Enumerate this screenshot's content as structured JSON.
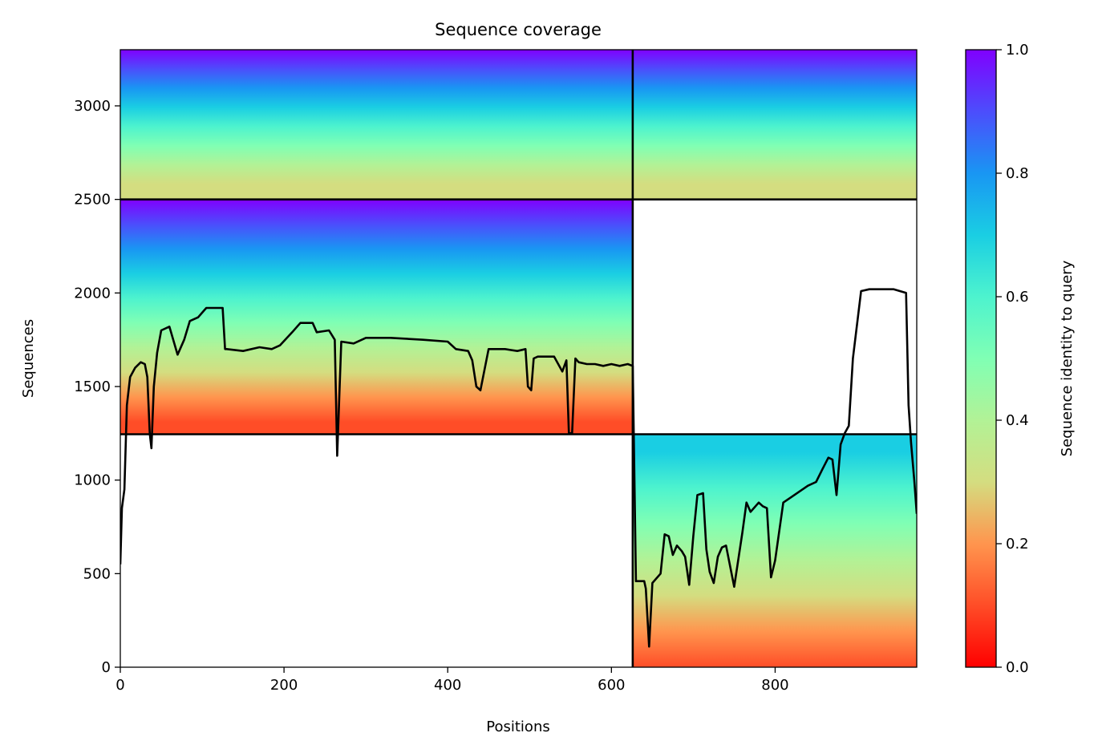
{
  "chart_data": {
    "type": "heatmap",
    "title": "Sequence coverage",
    "xlabel": "Positions",
    "ylabel": "Sequences",
    "xlim": [
      0,
      973
    ],
    "ylim": [
      0,
      3300
    ],
    "x_ticks": [
      0,
      200,
      400,
      600,
      800
    ],
    "y_ticks": [
      0,
      500,
      1000,
      1500,
      2000,
      2500,
      3000
    ],
    "colormap": "rainbow_r",
    "colorbar": {
      "label": "Sequence identity to query",
      "range": [
        0,
        1
      ],
      "ticks": [
        "0.0",
        "0.2",
        "0.4",
        "0.6",
        "0.8",
        "1.0"
      ]
    },
    "chain_boundaries": {
      "positions": [
        626
      ],
      "sequences": [
        1245,
        2500
      ]
    },
    "coverage_blocks": [
      {
        "name": "block-A-chain1",
        "x_range": [
          0,
          626
        ],
        "y_range": [
          2500,
          3300
        ],
        "identity_top": 1.0,
        "identity_bottom": 0.22
      },
      {
        "name": "block-A-chain2",
        "x_range": [
          626,
          973
        ],
        "y_range": [
          2500,
          3300
        ],
        "identity_top": 1.0,
        "identity_bottom": 0.22
      },
      {
        "name": "block-B-chain1",
        "x_range": [
          0,
          626
        ],
        "y_range": [
          1245,
          2500
        ],
        "identity_top": 1.0,
        "identity_bottom": 0.05
      },
      {
        "name": "block-C-chain2",
        "x_range": [
          626,
          973
        ],
        "y_range": [
          0,
          1245
        ],
        "identity_top": 0.75,
        "identity_bottom": 0.1
      }
    ],
    "coverage_line": {
      "color": "#000000",
      "x": [
        0,
        2,
        5,
        8,
        12,
        18,
        25,
        30,
        33,
        36,
        38,
        41,
        45,
        50,
        60,
        70,
        73,
        78,
        85,
        95,
        105,
        110,
        125,
        128,
        130,
        150,
        170,
        185,
        195,
        210,
        220,
        235,
        240,
        255,
        262,
        265,
        270,
        285,
        300,
        330,
        370,
        400,
        410,
        425,
        430,
        435,
        440,
        450,
        460,
        470,
        485,
        495,
        498,
        502,
        505,
        510,
        530,
        540,
        545,
        548,
        552,
        556,
        560,
        570,
        580,
        590,
        600,
        610,
        620,
        626,
        630,
        640,
        642,
        646,
        650,
        660,
        665,
        670,
        675,
        680,
        686,
        690,
        695,
        700,
        705,
        712,
        716,
        720,
        725,
        730,
        735,
        740,
        750,
        760,
        765,
        770,
        780,
        785,
        790,
        795,
        800,
        810,
        820,
        840,
        850,
        858,
        865,
        870,
        875,
        880,
        885,
        890,
        895,
        905,
        915,
        945,
        960,
        963,
        966,
        970,
        973
      ],
      "y": [
        550,
        850,
        950,
        1400,
        1550,
        1600,
        1630,
        1620,
        1550,
        1250,
        1170,
        1500,
        1680,
        1800,
        1820,
        1670,
        1700,
        1750,
        1850,
        1870,
        1920,
        1920,
        1920,
        1700,
        1700,
        1690,
        1710,
        1700,
        1720,
        1790,
        1840,
        1840,
        1790,
        1800,
        1750,
        1130,
        1740,
        1730,
        1760,
        1760,
        1750,
        1740,
        1700,
        1690,
        1640,
        1500,
        1480,
        1700,
        1700,
        1700,
        1690,
        1700,
        1500,
        1480,
        1650,
        1660,
        1660,
        1580,
        1640,
        1250,
        1250,
        1650,
        1630,
        1620,
        1620,
        1610,
        1620,
        1610,
        1620,
        1610,
        460,
        460,
        420,
        110,
        450,
        500,
        710,
        700,
        600,
        650,
        620,
        590,
        440,
        700,
        920,
        930,
        630,
        510,
        450,
        590,
        640,
        650,
        430,
        720,
        880,
        830,
        880,
        860,
        850,
        480,
        570,
        880,
        910,
        970,
        990,
        1060,
        1120,
        1110,
        920,
        1190,
        1250,
        1290,
        1650,
        2010,
        2020,
        2020,
        2000,
        1400,
        1200,
        1000,
        820
      ]
    }
  }
}
